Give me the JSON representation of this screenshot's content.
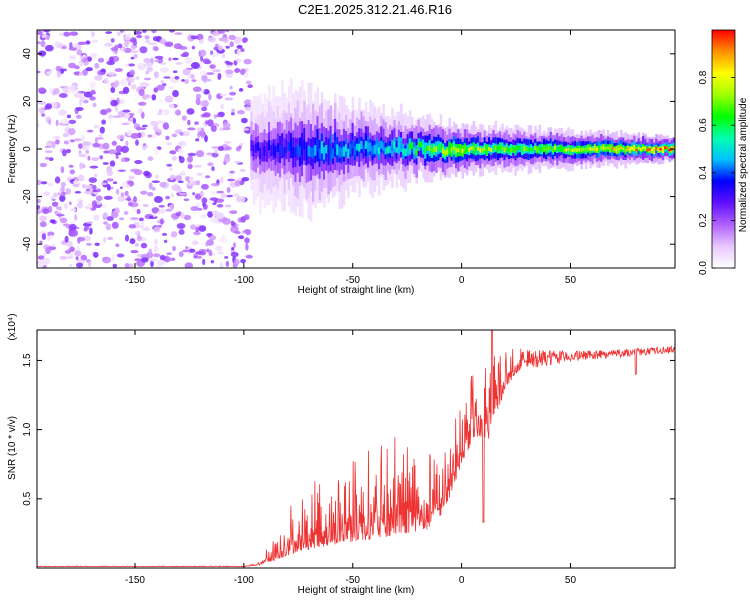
{
  "title": "C2E1.2025.312.21.46.R16",
  "chart_data": [
    {
      "type": "heatmap",
      "title": "C2E1.2025.312.21.46.R16",
      "xlabel": "Height of straight line (km)",
      "ylabel": "Frequency (Hz)",
      "xlim": [
        -195,
        98
      ],
      "ylim": [
        -50,
        50
      ],
      "x_ticks": [
        -150,
        -100,
        -50,
        0,
        50
      ],
      "y_ticks": [
        -40,
        -20,
        0,
        20,
        40
      ],
      "colorbar": {
        "label": "Normalized spectral amplitude",
        "range": [
          0,
          1
        ],
        "ticks": [
          "0.0",
          "0.2",
          "0.4",
          "0.6",
          "0.8"
        ],
        "colors": [
          "#ffffff",
          "#e8c8ff",
          "#b060ff",
          "#6010ff",
          "#0000ff",
          "#00c0ff",
          "#00ffb0",
          "#00ff00",
          "#a0ff00",
          "#ffff00",
          "#ff9000",
          "#ff0000"
        ]
      },
      "noise_region": {
        "x_range": [
          -195,
          -97
        ],
        "y_range": [
          -50,
          50
        ],
        "amplitude": 0.2
      },
      "signal_band": {
        "x_range": [
          -97,
          98
        ],
        "center_hz": 0,
        "half_width_hz": [
          {
            "x": -95,
            "hz": 8
          },
          {
            "x": -70,
            "hz": 10
          },
          {
            "x": -50,
            "hz": 7
          },
          {
            "x": -20,
            "hz": 5
          },
          {
            "x": 0,
            "hz": 4
          },
          {
            "x": 50,
            "hz": 3
          },
          {
            "x": 98,
            "hz": 2
          }
        ],
        "peak_amplitude": [
          {
            "x": -95,
            "a": 0.3
          },
          {
            "x": -60,
            "a": 0.45
          },
          {
            "x": -30,
            "a": 0.5
          },
          {
            "x": -5,
            "a": 0.75
          },
          {
            "x": 20,
            "a": 0.65
          },
          {
            "x": 60,
            "a": 0.75
          },
          {
            "x": 98,
            "a": 0.95
          }
        ]
      }
    },
    {
      "type": "line",
      "xlabel": "Height of straight line (km)",
      "ylabel": "SNR (10 * v/v)",
      "y_exponent": "(x10⁴)",
      "xlim": [
        -195,
        98
      ],
      "ylim": [
        0,
        1.72
      ],
      "x_ticks": [
        -150,
        -100,
        -50,
        0,
        50
      ],
      "y_ticks": [
        0.5,
        1.0,
        1.5
      ],
      "y_tick_labels": [
        "0.5",
        "1.0",
        "1.5"
      ],
      "color": "#ee3333",
      "series": [
        {
          "name": "SNR",
          "envelope": [
            {
              "x": -195,
              "base": 0.01,
              "amp": 0.005
            },
            {
              "x": -100,
              "base": 0.01,
              "amp": 0.005
            },
            {
              "x": -93,
              "base": 0.02,
              "amp": 0.02
            },
            {
              "x": -85,
              "base": 0.06,
              "amp": 0.25
            },
            {
              "x": -75,
              "base": 0.12,
              "amp": 0.45
            },
            {
              "x": -65,
              "base": 0.15,
              "amp": 0.5
            },
            {
              "x": -55,
              "base": 0.18,
              "amp": 0.55
            },
            {
              "x": -45,
              "base": 0.2,
              "amp": 0.65
            },
            {
              "x": -35,
              "base": 0.22,
              "amp": 0.7
            },
            {
              "x": -25,
              "base": 0.25,
              "amp": 0.78
            },
            {
              "x": -15,
              "base": 0.28,
              "amp": 0.55
            },
            {
              "x": -8,
              "base": 0.4,
              "amp": 0.5
            },
            {
              "x": 0,
              "base": 0.75,
              "amp": 0.45
            },
            {
              "x": 6,
              "base": 0.95,
              "amp": 0.5
            },
            {
              "x": 12,
              "base": 0.9,
              "amp": 0.6
            },
            {
              "x": 20,
              "base": 1.3,
              "amp": 0.3
            },
            {
              "x": 30,
              "base": 1.5,
              "amp": 0.1
            },
            {
              "x": 50,
              "base": 1.53,
              "amp": 0.05
            },
            {
              "x": 70,
              "base": 1.55,
              "amp": 0.04
            },
            {
              "x": 98,
              "base": 1.58,
              "amp": 0.03
            }
          ],
          "dips": [
            {
              "x": 10,
              "value": 0.33
            },
            {
              "x": 80,
              "value": 1.4
            }
          ],
          "max_spike": {
            "x": 14,
            "value": 1.72
          }
        }
      ]
    }
  ]
}
